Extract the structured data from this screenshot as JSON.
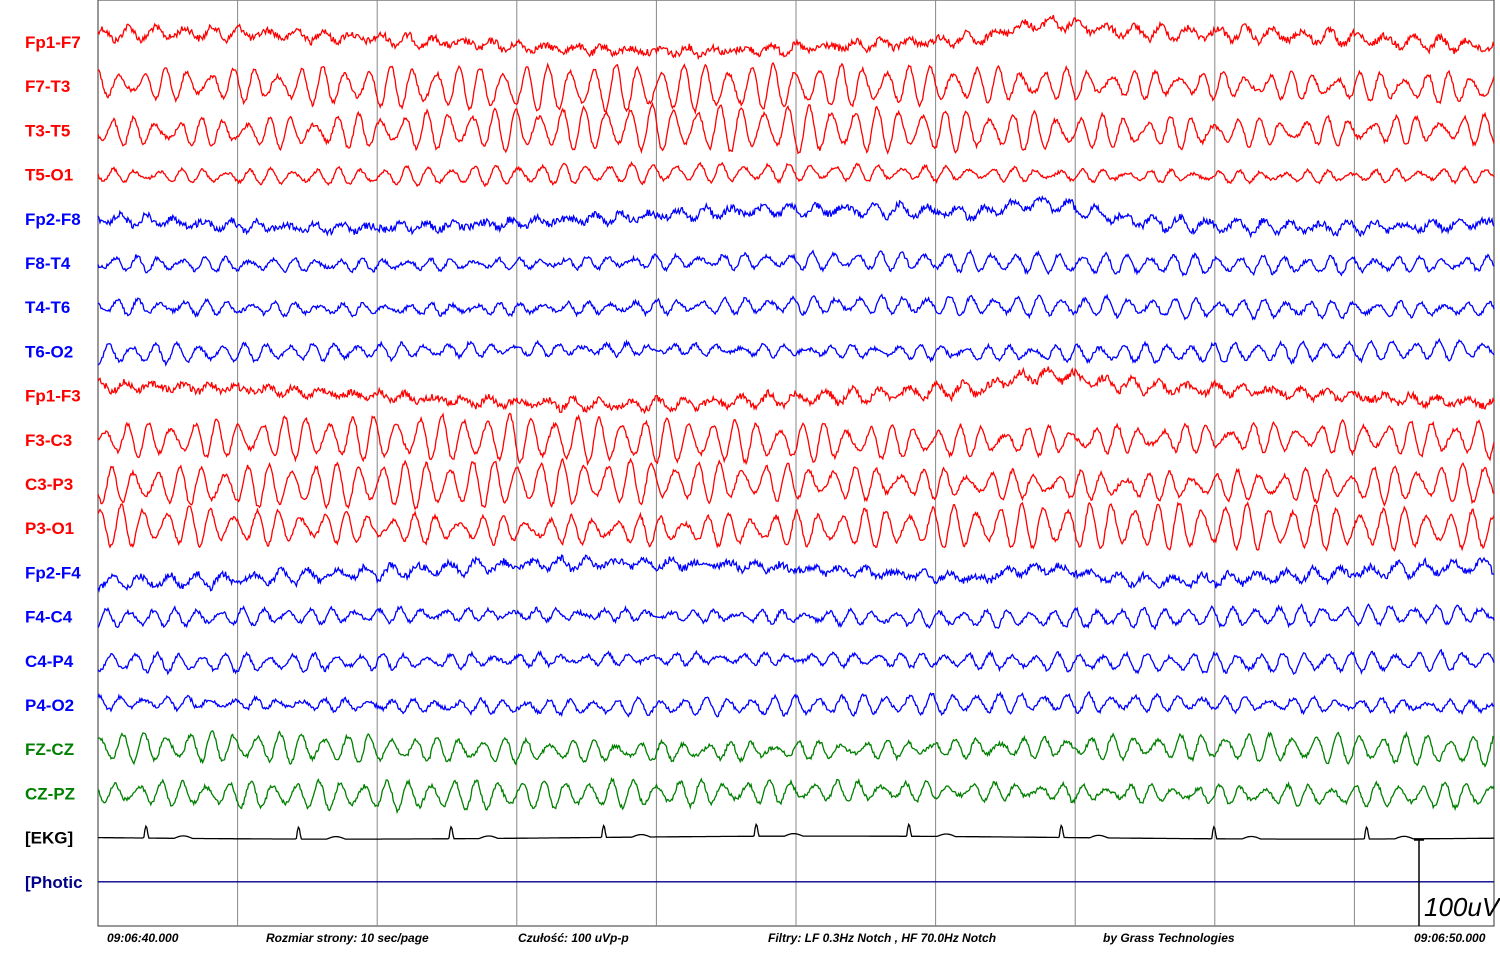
{
  "chart_data": {
    "type": "line",
    "title": "",
    "colors": {
      "left": "#ff0000",
      "right": "#0000ff",
      "midline": "#008000",
      "ekg": "#000000",
      "photic": "#00008b",
      "grid": "#888888"
    },
    "channels": [
      {
        "name": "Fp1-F7",
        "group": "left"
      },
      {
        "name": "F7-T3",
        "group": "left"
      },
      {
        "name": "T3-T5",
        "group": "left"
      },
      {
        "name": "T5-O1",
        "group": "left"
      },
      {
        "name": "Fp2-F8",
        "group": "right"
      },
      {
        "name": "F8-T4",
        "group": "right"
      },
      {
        "name": "T4-T6",
        "group": "right"
      },
      {
        "name": "T6-O2",
        "group": "right"
      },
      {
        "name": "Fp1-F3",
        "group": "left"
      },
      {
        "name": "F3-C3",
        "group": "left"
      },
      {
        "name": "C3-P3",
        "group": "left"
      },
      {
        "name": "P3-O1",
        "group": "left"
      },
      {
        "name": "Fp2-F4",
        "group": "right"
      },
      {
        "name": "F4-C4",
        "group": "right"
      },
      {
        "name": "C4-P4",
        "group": "right"
      },
      {
        "name": "P4-O2",
        "group": "right"
      },
      {
        "name": "FZ-CZ",
        "group": "midline"
      },
      {
        "name": "CZ-PZ",
        "group": "midline"
      },
      {
        "name": "[EKG]",
        "group": "ekg"
      },
      {
        "name": "[Photic",
        "group": "photic"
      }
    ],
    "time_range_sec": [
      0,
      10
    ],
    "grid_interval_sec": 1,
    "scale_bar": "100uV",
    "footer": {
      "start_time": "09:06:40.000",
      "page_size": "Rozmiar strony: 10 sec/page",
      "sensitivity": "Czułość:  100 uVp-p",
      "filters": "Filtry: LF  0.3Hz Notch , HF 70.0Hz Notch",
      "vendor": "by Grass Technologies",
      "end_time": "09:06:50.000"
    }
  }
}
